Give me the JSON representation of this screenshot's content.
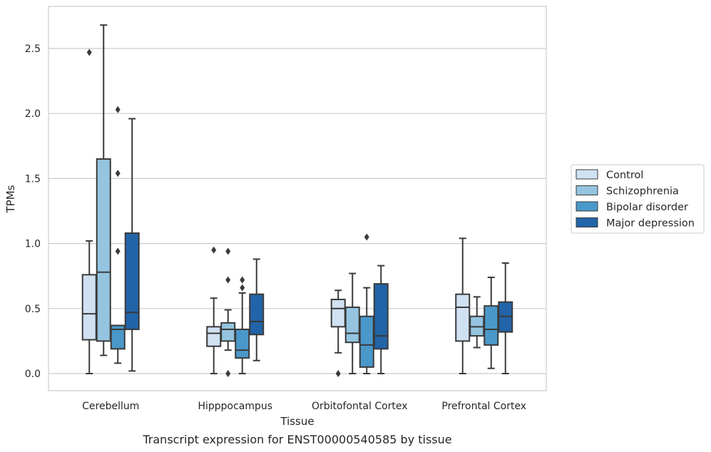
{
  "chart_data": {
    "type": "box",
    "xlabel": "Tissue",
    "ylabel": "TPMs",
    "caption": "Transcript expression for ENST00000540585 by tissue",
    "ylim": [
      -0.13,
      2.85
    ],
    "yticks": [
      0.0,
      0.5,
      1.0,
      1.5,
      2.0,
      2.5
    ],
    "ytick_labels": [
      "0.0",
      "0.5",
      "1.0",
      "1.5",
      "2.0",
      "2.5"
    ],
    "grid": "horizontal",
    "legend_position": "right",
    "categories": [
      "Cerebellum",
      "Hipppocampus",
      "Orbitofontal Cortex",
      "Prefrontal Cortex"
    ],
    "series": [
      {
        "name": "Control",
        "color": "#d0e1f2",
        "boxes": [
          {
            "whisker_low": 0.0,
            "q1": 0.26,
            "median": 0.46,
            "q3": 0.76,
            "whisker_high": 1.02,
            "outliers": [
              2.47
            ]
          },
          {
            "whisker_low": 0.0,
            "q1": 0.21,
            "median": 0.31,
            "q3": 0.36,
            "whisker_high": 0.58,
            "outliers": [
              0.95
            ]
          },
          {
            "whisker_low": 0.16,
            "q1": 0.36,
            "median": 0.5,
            "q3": 0.57,
            "whisker_high": 0.64,
            "outliers": [
              0.0
            ]
          },
          {
            "whisker_low": 0.0,
            "q1": 0.25,
            "median": 0.51,
            "q3": 0.61,
            "whisker_high": 1.04,
            "outliers": []
          }
        ]
      },
      {
        "name": "Schizophrenia",
        "color": "#94c4df",
        "boxes": [
          {
            "whisker_low": 0.14,
            "q1": 0.25,
            "median": 0.78,
            "q3": 1.65,
            "whisker_high": 2.68,
            "outliers": []
          },
          {
            "whisker_low": 0.18,
            "q1": 0.25,
            "median": 0.34,
            "q3": 0.39,
            "whisker_high": 0.49,
            "outliers": [
              0.94,
              0.72,
              0.0
            ]
          },
          {
            "whisker_low": 0.0,
            "q1": 0.24,
            "median": 0.31,
            "q3": 0.51,
            "whisker_high": 0.77,
            "outliers": []
          },
          {
            "whisker_low": 0.2,
            "q1": 0.29,
            "median": 0.36,
            "q3": 0.44,
            "whisker_high": 0.59,
            "outliers": []
          }
        ]
      },
      {
        "name": "Bipolar disorder",
        "color": "#4a98c9",
        "boxes": [
          {
            "whisker_low": 0.08,
            "q1": 0.19,
            "median": 0.34,
            "q3": 0.37,
            "whisker_high": 0.37,
            "outliers": [
              2.03,
              1.54,
              0.94
            ]
          },
          {
            "whisker_low": 0.0,
            "q1": 0.12,
            "median": 0.18,
            "q3": 0.34,
            "whisker_high": 0.62,
            "outliers": [
              0.72,
              0.66
            ]
          },
          {
            "whisker_low": 0.0,
            "q1": 0.05,
            "median": 0.22,
            "q3": 0.44,
            "whisker_high": 0.66,
            "outliers": [
              1.05
            ]
          },
          {
            "whisker_low": 0.04,
            "q1": 0.22,
            "median": 0.34,
            "q3": 0.52,
            "whisker_high": 0.74,
            "outliers": []
          }
        ]
      },
      {
        "name": "Major depression",
        "color": "#2264a8",
        "boxes": [
          {
            "whisker_low": 0.02,
            "q1": 0.34,
            "median": 0.47,
            "q3": 1.08,
            "whisker_high": 1.96,
            "outliers": []
          },
          {
            "whisker_low": 0.1,
            "q1": 0.3,
            "median": 0.4,
            "q3": 0.61,
            "whisker_high": 0.88,
            "outliers": []
          },
          {
            "whisker_low": 0.0,
            "q1": 0.19,
            "median": 0.29,
            "q3": 0.69,
            "whisker_high": 0.83,
            "outliers": []
          },
          {
            "whisker_low": 0.0,
            "q1": 0.32,
            "median": 0.44,
            "q3": 0.55,
            "whisker_high": 0.85,
            "outliers": []
          }
        ]
      }
    ]
  }
}
